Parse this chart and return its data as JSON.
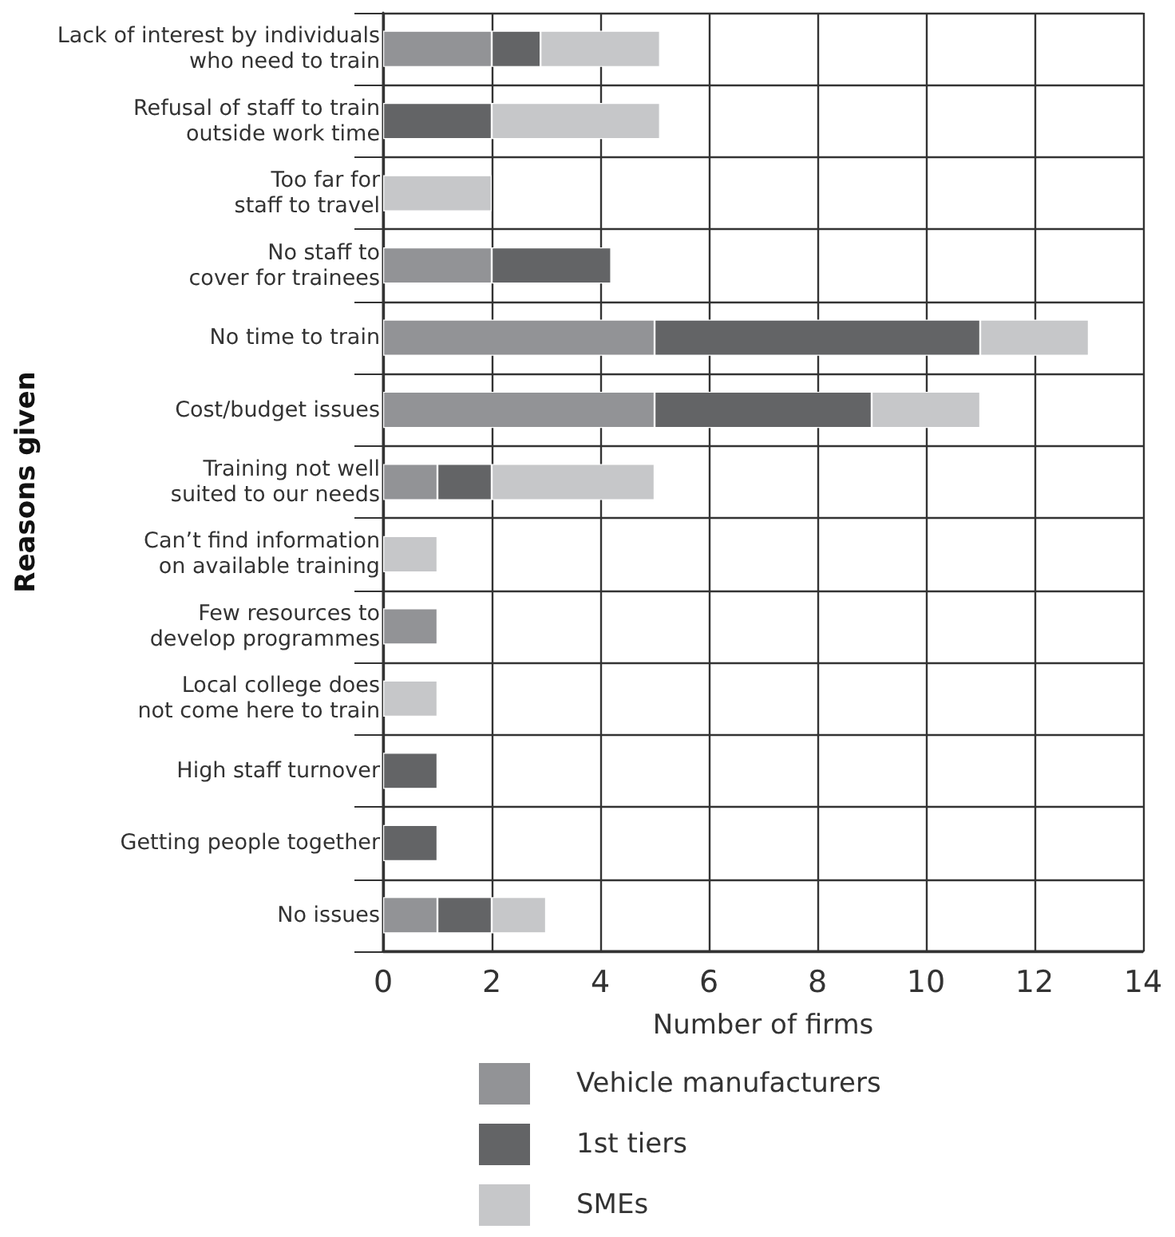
{
  "chart_data": {
    "type": "bar",
    "orientation": "horizontal",
    "stacked": true,
    "xlabel": "Number of firms",
    "ylabel": "Reasons given",
    "categories": [
      "Lack of interest by individuals\nwho need to train",
      "Refusal of staff to train\noutside work time",
      "Too far for\nstaff to travel",
      "No staff to\ncover for trainees",
      "No time to train",
      "Cost/budget issues",
      "Training not well\nsuited to our needs",
      "Can’t find information\non available training",
      "Few resources to\ndevelop programmes",
      "Local college does\nnot come here to train",
      "High staff turnover",
      "Getting people together",
      "No issues"
    ],
    "series": [
      {
        "name": "Vehicle manufacturers",
        "color": "#929396",
        "values": [
          2,
          0,
          0,
          2,
          5,
          5,
          1,
          0,
          1,
          0,
          0,
          0,
          1
        ]
      },
      {
        "name": "1st tiers",
        "color": "#636466",
        "values": [
          0.9,
          2,
          0,
          2.2,
          6,
          4,
          1,
          0,
          0,
          0,
          1,
          1,
          1
        ]
      },
      {
        "name": "SMEs",
        "color": "#c6c7c9",
        "values": [
          2.2,
          3.1,
          2,
          0,
          2,
          2,
          3,
          1,
          0,
          1,
          0,
          0,
          1
        ]
      }
    ],
    "xlim": [
      0,
      14
    ],
    "xticks": [
      0,
      2,
      4,
      6,
      8,
      10,
      12,
      14
    ],
    "grid": true,
    "legend": "bottom"
  }
}
